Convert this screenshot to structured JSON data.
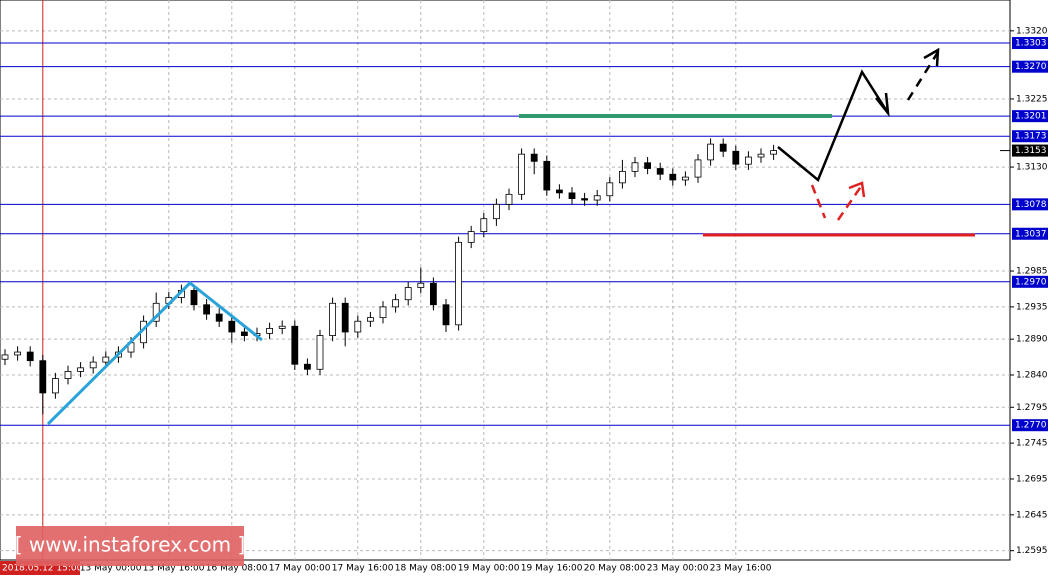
{
  "chart_data": {
    "type": "candlestick",
    "categories": [
      null,
      null,
      null,
      "2018.05.12 15:00",
      null,
      null,
      null,
      null,
      "13 May 00:00",
      null,
      null,
      null,
      null,
      "13 May 16:00",
      null,
      null,
      null,
      null,
      "16 May 08:00",
      null,
      null,
      null,
      null,
      "17 May 00:00",
      null,
      null,
      null,
      null,
      "17 May 16:00",
      null,
      null,
      null,
      null,
      "18 May 08:00",
      null,
      null,
      null,
      null,
      "19 May 00:00",
      null,
      null,
      null,
      null,
      "19 May 16:00",
      null,
      null,
      null,
      null,
      "20 May 08:00",
      null,
      null,
      null,
      null,
      "23 May 00:00",
      null,
      null,
      null,
      null,
      "23 May 16:00",
      null,
      null,
      null
    ],
    "open": [
      1.2862,
      1.2868,
      1.2872,
      1.286,
      1.2815,
      1.2835,
      1.2845,
      1.285,
      1.2858,
      1.2865,
      1.2872,
      1.2885,
      1.2915,
      1.294,
      1.2948,
      1.2958,
      1.2938,
      1.2925,
      1.2915,
      1.29,
      1.2895,
      1.2898,
      1.2905,
      1.2908,
      1.2855,
      1.2848,
      1.2895,
      1.294,
      1.29,
      1.2915,
      1.292,
      1.2935,
      1.2945,
      1.2962,
      1.2968,
      1.2938,
      1.291,
      1.3025,
      1.304,
      1.3058,
      1.3078,
      1.3092,
      1.3148,
      1.3138,
      1.3098,
      1.3094,
      1.3086,
      1.3084,
      1.309,
      1.3108,
      1.3124,
      1.3136,
      1.3128,
      1.312,
      1.3112,
      1.3116,
      1.314,
      1.3162,
      1.3152,
      1.3134,
      1.3144,
      1.3148
    ],
    "high": [
      1.2876,
      1.288,
      1.288,
      1.2868,
      1.2843,
      1.2853,
      1.2858,
      1.2866,
      1.2873,
      1.288,
      1.2893,
      1.2923,
      1.2955,
      1.2956,
      1.2966,
      1.2966,
      1.2946,
      1.2933,
      1.2923,
      1.2908,
      1.2906,
      1.2913,
      1.2916,
      1.2916,
      1.2863,
      1.2903,
      1.2948,
      1.2948,
      1.2923,
      1.2928,
      1.2943,
      1.2953,
      1.297,
      1.299,
      1.2976,
      1.2946,
      1.3033,
      1.3048,
      1.3066,
      1.3086,
      1.31,
      1.3156,
      1.3156,
      1.3146,
      1.3106,
      1.3102,
      1.3094,
      1.3098,
      1.3116,
      1.314,
      1.3144,
      1.3144,
      1.3136,
      1.3128,
      1.3124,
      1.3148,
      1.317,
      1.317,
      1.316,
      1.3152,
      1.3156,
      1.3161
    ],
    "low": [
      1.2854,
      1.286,
      1.2852,
      1.2785,
      1.2807,
      1.2827,
      1.2837,
      1.2842,
      1.285,
      1.2857,
      1.2864,
      1.2877,
      1.2907,
      1.2932,
      1.294,
      1.293,
      1.2917,
      1.2907,
      1.2885,
      1.2887,
      1.2887,
      1.289,
      1.2897,
      1.2847,
      1.284,
      1.284,
      1.2887,
      1.288,
      1.2892,
      1.2907,
      1.2912,
      1.2927,
      1.2937,
      1.2954,
      1.293,
      1.29,
      1.2902,
      1.3017,
      1.3032,
      1.3048,
      1.307,
      1.3084,
      1.312,
      1.309,
      1.3086,
      1.3078,
      1.3076,
      1.3076,
      1.3082,
      1.31,
      1.3116,
      1.312,
      1.3112,
      1.3104,
      1.3104,
      1.3108,
      1.3132,
      1.3144,
      1.3126,
      1.3126,
      1.3136,
      1.314
    ],
    "close": [
      1.2868,
      1.2872,
      1.286,
      1.2815,
      1.2835,
      1.2845,
      1.285,
      1.2858,
      1.2865,
      1.2872,
      1.2885,
      1.2915,
      1.294,
      1.2948,
      1.2958,
      1.2938,
      1.2925,
      1.2915,
      1.29,
      1.2895,
      1.2898,
      1.2905,
      1.2908,
      1.2855,
      1.2848,
      1.2895,
      1.294,
      1.29,
      1.2915,
      1.292,
      1.2935,
      1.2945,
      1.2962,
      1.2968,
      1.2938,
      1.291,
      1.3025,
      1.304,
      1.3058,
      1.3078,
      1.3092,
      1.3148,
      1.3138,
      1.3098,
      1.3094,
      1.3086,
      1.3084,
      1.309,
      1.3108,
      1.3124,
      1.3136,
      1.3128,
      1.312,
      1.3112,
      1.3116,
      1.314,
      1.3162,
      1.3152,
      1.3134,
      1.3144,
      1.3148,
      1.3153
    ],
    "ylim": [
      1.2582,
      1.3363
    ],
    "yticks": [
      {
        "value": 1.332,
        "label": "1.3320"
      },
      1.3225,
      {
        "value": 1.313,
        "label": "1.3130"
      },
      1.2985,
      1.2935,
      {
        "value": 1.289,
        "label": "1.2890"
      },
      {
        "value": 1.284,
        "label": "1.2840"
      },
      1.2795,
      1.2745,
      1.2695,
      1.2645,
      1.2595
    ],
    "levels": [
      1.3303,
      {
        "value": 1.327,
        "label": "1.3270"
      },
      1.3201,
      1.3173,
      1.3078,
      1.3037,
      {
        "value": 1.297,
        "label": "1.2970"
      },
      {
        "value": 1.277,
        "label": "1.2770"
      }
    ],
    "last_price": 1.3153,
    "grid": true,
    "level_color": "#0000cc",
    "watermark": "[ www.instaforex.com ]"
  }
}
